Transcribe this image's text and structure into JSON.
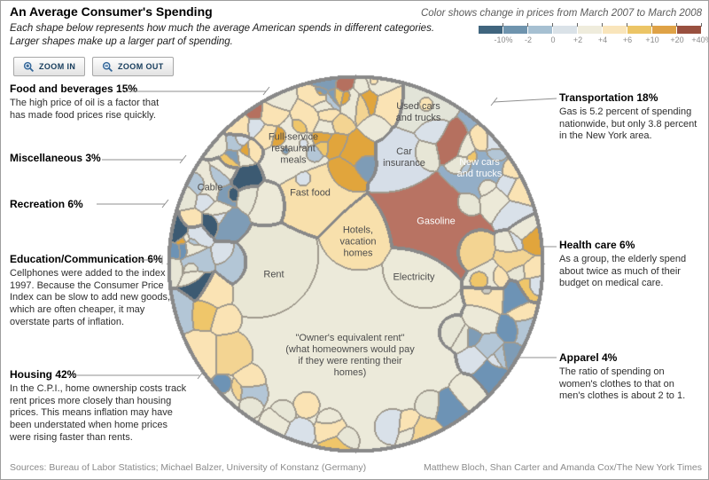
{
  "page": {
    "title": "An Average Consumer's Spending",
    "subtitle_line1": "Each shape below represents how much the average American spends in different categories.",
    "subtitle_line2": "Larger shapes make up a larger part of spending.",
    "footer_left": "Sources: Bureau of Labor Statistics; Michael Balzer, University of Konstanz (Germany)",
    "footer_right": "Matthew Bloch, Shan Carter and Amanda Cox/The New York Times"
  },
  "toolbar": {
    "zoom_in_label": "ZOOM IN",
    "zoom_out_label": "ZOOM OUT"
  },
  "legend": {
    "title": "Color shows change in prices from March 2007 to March 2008",
    "tick_labels": [
      "-10%",
      "-2",
      "0",
      "+2",
      "+4",
      "+6",
      "+10",
      "+20",
      "+40%"
    ],
    "colors": [
      "#40657e",
      "#6f94ae",
      "#a6c0d2",
      "#dae2e8",
      "#efecdc",
      "#f9e5bb",
      "#ecc566",
      "#dfa246",
      "#99503f"
    ]
  },
  "annotations": {
    "left": [
      {
        "heading": "Food and beverages 15%",
        "body": "The high price of oil is a factor that has made food prices rise quickly."
      },
      {
        "heading": "Miscellaneous 3%",
        "body": ""
      },
      {
        "heading": "Recreation 6%",
        "body": ""
      },
      {
        "heading": "Education/Communication 6%",
        "body": "Cellphones were added to the index in 1997. Because the Consumer Price Index can be slow to add new goods, which are often cheaper, it may overstate parts of inflation."
      },
      {
        "heading": "Housing 42%",
        "body": "In the C.P.I., home ownership costs track rent prices more closely than housing prices. This means inflation may have been understated when home prices were rising faster than rents."
      }
    ],
    "right": [
      {
        "heading": "Transportation 18%",
        "body": "Gas is 5.2 percent of spending nationwide, but only 3.8 percent in the New York area."
      },
      {
        "heading": "Health care 6%",
        "body": "As a group, the elderly spend about twice as much of their budget on medical care."
      },
      {
        "heading": "Apparel 4%",
        "body": "The ratio of spending on women's clothes to that on men's clothes is about 2 to 1."
      }
    ]
  },
  "cells": {
    "full_service": "Full-service\nrestaurant\nmeals",
    "fast_food": "Fast food",
    "used_cars": "Used cars\nand trucks",
    "car_insurance": "Car\ninsurance",
    "new_cars": "New cars\nand trucks",
    "gasoline": "Gasoline",
    "cable": "Cable",
    "hotels": "Hotels,\nvacation\nhomes",
    "rent": "Rent",
    "electricity": "Electricity",
    "owner_rent": "\"Owner's equivalent rent\"\n(what homeowners would pay\nif they were renting their\nhomes)"
  },
  "chart_data": {
    "type": "voronoi-treemap",
    "title": "An Average Consumer's Spending",
    "value_unit": "percent of average consumer spending",
    "color_scale": {
      "label": "Change in prices from March 2007 to March 2008",
      "breaks": [
        "-10%",
        "-2",
        "0",
        "+2",
        "+4",
        "+6",
        "+10",
        "+20",
        "+40%"
      ],
      "colors": [
        "#40657e",
        "#6f94ae",
        "#a6c0d2",
        "#dae2e8",
        "#efecdc",
        "#f9e5bb",
        "#ecc566",
        "#dfa246",
        "#99503f"
      ]
    },
    "segments": [
      {
        "name": "Food and beverages",
        "pct": 15,
        "labeled_cells": [
          "Full-service restaurant meals",
          "Fast food"
        ]
      },
      {
        "name": "Transportation",
        "pct": 18,
        "labeled_cells": [
          "Used cars and trucks",
          "Car insurance",
          "New cars and trucks",
          "Gasoline"
        ]
      },
      {
        "name": "Health care",
        "pct": 6,
        "labeled_cells": []
      },
      {
        "name": "Apparel",
        "pct": 4,
        "labeled_cells": []
      },
      {
        "name": "Housing",
        "pct": 42,
        "labeled_cells": [
          "Hotels, vacation homes",
          "Rent",
          "Electricity",
          "Owner's equivalent rent"
        ]
      },
      {
        "name": "Education/Communication",
        "pct": 6,
        "labeled_cells": []
      },
      {
        "name": "Recreation",
        "pct": 6,
        "labeled_cells": [
          "Cable"
        ]
      },
      {
        "name": "Miscellaneous",
        "pct": 3,
        "labeled_cells": []
      }
    ],
    "highlighted_cells": [
      {
        "label": "Gasoline",
        "segment": "Transportation",
        "price_change": "+20% to +40%"
      },
      {
        "label": "New cars and trucks",
        "segment": "Transportation",
        "price_change": "-10% to -2%"
      },
      {
        "label": "Car insurance",
        "segment": "Transportation",
        "price_change": "-2% to 0"
      },
      {
        "label": "Used cars and trucks",
        "segment": "Transportation",
        "price_change": "0 to +2%"
      },
      {
        "label": "Full-service restaurant meals",
        "segment": "Food and beverages",
        "price_change": "+2% to +4%"
      },
      {
        "label": "Fast food",
        "segment": "Food and beverages",
        "price_change": "+4% to +6%"
      },
      {
        "label": "Cable",
        "segment": "Recreation",
        "price_change": "+2% to +4%"
      },
      {
        "label": "Hotels, vacation homes",
        "segment": "Housing",
        "price_change": "+4% to +6%"
      },
      {
        "label": "Rent",
        "segment": "Housing",
        "price_change": "+2% to +4%"
      },
      {
        "label": "Electricity",
        "segment": "Housing",
        "price_change": "+2% to +4%"
      },
      {
        "label": "Owner's equivalent rent",
        "segment": "Housing",
        "price_change": "+2% to +4%"
      }
    ]
  }
}
